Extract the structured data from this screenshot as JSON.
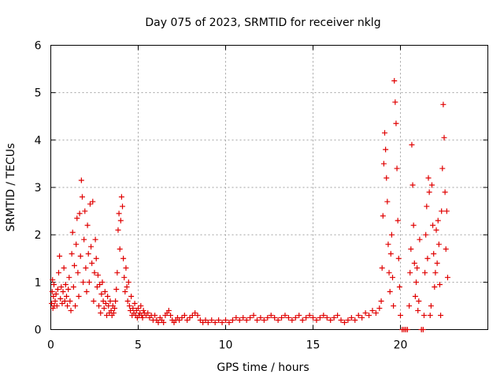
{
  "chart_data": {
    "type": "scatter",
    "title": "Day 075 of 2023, SRMTID for receiver nklg",
    "xlabel": "GPS time / hours",
    "ylabel": "SRMTID / TECUs",
    "xlim": [
      0,
      25
    ],
    "ylim": [
      0,
      6
    ],
    "xticks": [
      0,
      5,
      10,
      15,
      20
    ],
    "yticks": [
      0,
      1,
      2,
      3,
      4,
      5,
      6
    ],
    "grid": true,
    "marker": "+",
    "marker_color": "#e00000",
    "series": [
      {
        "name": "SRMTID",
        "points": [
          [
            0.05,
            0.55
          ],
          [
            0.08,
            0.8
          ],
          [
            0.1,
            1.05
          ],
          [
            0.12,
            0.45
          ],
          [
            0.15,
            0.7
          ],
          [
            0.18,
            0.95
          ],
          [
            0.2,
            0.5
          ],
          [
            0.25,
            0.6
          ],
          [
            0.3,
            0.75
          ],
          [
            0.35,
            0.5
          ],
          [
            0.4,
            0.85
          ],
          [
            0.45,
            1.2
          ],
          [
            0.5,
            1.55
          ],
          [
            0.55,
            0.65
          ],
          [
            0.6,
            0.9
          ],
          [
            0.65,
            0.55
          ],
          [
            0.7,
            0.8
          ],
          [
            0.75,
            1.3
          ],
          [
            0.8,
            0.6
          ],
          [
            0.85,
            0.95
          ],
          [
            0.9,
            0.7
          ],
          [
            0.95,
            0.5
          ],
          [
            1.0,
            0.85
          ],
          [
            1.05,
            1.1
          ],
          [
            1.1,
            0.6
          ],
          [
            1.15,
            0.4
          ],
          [
            1.2,
            1.6
          ],
          [
            1.25,
            2.05
          ],
          [
            1.3,
            0.9
          ],
          [
            1.35,
            1.35
          ],
          [
            1.4,
            0.5
          ],
          [
            1.45,
            1.8
          ],
          [
            1.5,
            2.35
          ],
          [
            1.55,
            1.2
          ],
          [
            1.6,
            0.7
          ],
          [
            1.65,
            2.45
          ],
          [
            1.7,
            1.55
          ],
          [
            1.75,
            3.15
          ],
          [
            1.8,
            2.8
          ],
          [
            1.85,
            1.0
          ],
          [
            1.9,
            1.9
          ],
          [
            1.95,
            2.5
          ],
          [
            2.0,
            1.3
          ],
          [
            2.05,
            0.8
          ],
          [
            2.1,
            2.2
          ],
          [
            2.15,
            1.6
          ],
          [
            2.2,
            1.0
          ],
          [
            2.25,
            2.65
          ],
          [
            2.3,
            1.75
          ],
          [
            2.35,
            1.4
          ],
          [
            2.4,
            2.7
          ],
          [
            2.45,
            0.6
          ],
          [
            2.5,
            1.2
          ],
          [
            2.55,
            1.9
          ],
          [
            2.6,
            1.5
          ],
          [
            2.65,
            0.9
          ],
          [
            2.7,
            1.15
          ],
          [
            2.75,
            0.5
          ],
          [
            2.8,
            0.95
          ],
          [
            2.85,
            0.35
          ],
          [
            2.9,
            0.75
          ],
          [
            2.95,
            1.0
          ],
          [
            3.0,
            0.6
          ],
          [
            3.05,
            0.45
          ],
          [
            3.1,
            0.8
          ],
          [
            3.15,
            0.55
          ],
          [
            3.2,
            0.3
          ],
          [
            3.25,
            0.7
          ],
          [
            3.3,
            0.5
          ],
          [
            3.35,
            0.35
          ],
          [
            3.4,
            0.6
          ],
          [
            3.45,
            0.4
          ],
          [
            3.5,
            0.3
          ],
          [
            3.55,
            0.5
          ],
          [
            3.6,
            0.35
          ],
          [
            3.65,
            0.45
          ],
          [
            3.7,
            0.6
          ],
          [
            3.75,
            0.85
          ],
          [
            3.8,
            1.2
          ],
          [
            3.85,
            2.1
          ],
          [
            3.9,
            2.45
          ],
          [
            3.95,
            1.7
          ],
          [
            4.0,
            2.3
          ],
          [
            4.05,
            2.8
          ],
          [
            4.1,
            2.6
          ],
          [
            4.15,
            1.5
          ],
          [
            4.2,
            1.1
          ],
          [
            4.25,
            0.8
          ],
          [
            4.3,
            1.3
          ],
          [
            4.35,
            0.9
          ],
          [
            4.4,
            0.6
          ],
          [
            4.45,
            1.0
          ],
          [
            4.5,
            0.5
          ],
          [
            4.55,
            0.4
          ],
          [
            4.6,
            0.7
          ],
          [
            4.65,
            0.3
          ],
          [
            4.7,
            0.45
          ],
          [
            4.75,
            0.35
          ],
          [
            4.8,
            0.55
          ],
          [
            4.85,
            0.3
          ],
          [
            4.9,
            0.4
          ],
          [
            4.95,
            0.25
          ],
          [
            5.0,
            0.45
          ],
          [
            5.05,
            0.3
          ],
          [
            5.1,
            0.35
          ],
          [
            5.15,
            0.5
          ],
          [
            5.2,
            0.3
          ],
          [
            5.25,
            0.25
          ],
          [
            5.3,
            0.4
          ],
          [
            5.35,
            0.35
          ],
          [
            5.45,
            0.3
          ],
          [
            5.55,
            0.35
          ],
          [
            5.65,
            0.25
          ],
          [
            5.75,
            0.3
          ],
          [
            5.85,
            0.2
          ],
          [
            5.95,
            0.3
          ],
          [
            6.05,
            0.2
          ],
          [
            6.15,
            0.15
          ],
          [
            6.25,
            0.25
          ],
          [
            6.35,
            0.2
          ],
          [
            6.45,
            0.15
          ],
          [
            6.55,
            0.3
          ],
          [
            6.65,
            0.35
          ],
          [
            6.75,
            0.4
          ],
          [
            6.85,
            0.3
          ],
          [
            6.95,
            0.2
          ],
          [
            7.05,
            0.15
          ],
          [
            7.15,
            0.2
          ],
          [
            7.25,
            0.25
          ],
          [
            7.35,
            0.2
          ],
          [
            7.5,
            0.25
          ],
          [
            7.65,
            0.3
          ],
          [
            7.8,
            0.2
          ],
          [
            7.95,
            0.25
          ],
          [
            8.1,
            0.3
          ],
          [
            8.25,
            0.35
          ],
          [
            8.4,
            0.3
          ],
          [
            8.55,
            0.2
          ],
          [
            8.7,
            0.15
          ],
          [
            8.85,
            0.2
          ],
          [
            9.0,
            0.15
          ],
          [
            9.2,
            0.2
          ],
          [
            9.4,
            0.15
          ],
          [
            9.6,
            0.2
          ],
          [
            9.8,
            0.15
          ],
          [
            10.0,
            0.2
          ],
          [
            10.2,
            0.15
          ],
          [
            10.4,
            0.2
          ],
          [
            10.6,
            0.25
          ],
          [
            10.8,
            0.2
          ],
          [
            11.0,
            0.25
          ],
          [
            11.2,
            0.2
          ],
          [
            11.4,
            0.25
          ],
          [
            11.6,
            0.3
          ],
          [
            11.8,
            0.2
          ],
          [
            12.0,
            0.25
          ],
          [
            12.2,
            0.2
          ],
          [
            12.4,
            0.25
          ],
          [
            12.6,
            0.3
          ],
          [
            12.8,
            0.25
          ],
          [
            13.0,
            0.2
          ],
          [
            13.2,
            0.25
          ],
          [
            13.4,
            0.3
          ],
          [
            13.6,
            0.25
          ],
          [
            13.8,
            0.2
          ],
          [
            14.0,
            0.25
          ],
          [
            14.2,
            0.3
          ],
          [
            14.4,
            0.2
          ],
          [
            14.6,
            0.25
          ],
          [
            14.8,
            0.3
          ],
          [
            15.0,
            0.25
          ],
          [
            15.2,
            0.2
          ],
          [
            15.4,
            0.25
          ],
          [
            15.6,
            0.3
          ],
          [
            15.8,
            0.25
          ],
          [
            16.0,
            0.2
          ],
          [
            16.2,
            0.25
          ],
          [
            16.4,
            0.3
          ],
          [
            16.6,
            0.2
          ],
          [
            16.8,
            0.15
          ],
          [
            17.0,
            0.2
          ],
          [
            17.2,
            0.25
          ],
          [
            17.4,
            0.2
          ],
          [
            17.6,
            0.3
          ],
          [
            17.8,
            0.25
          ],
          [
            18.0,
            0.35
          ],
          [
            18.2,
            0.3
          ],
          [
            18.4,
            0.4
          ],
          [
            18.6,
            0.35
          ],
          [
            18.8,
            0.45
          ],
          [
            18.9,
            0.6
          ],
          [
            18.95,
            1.3
          ],
          [
            19.0,
            2.4
          ],
          [
            19.05,
            3.5
          ],
          [
            19.1,
            4.15
          ],
          [
            19.15,
            3.8
          ],
          [
            19.2,
            3.2
          ],
          [
            19.25,
            2.7
          ],
          [
            19.3,
            1.8
          ],
          [
            19.35,
            1.2
          ],
          [
            19.4,
            0.8
          ],
          [
            19.45,
            1.6
          ],
          [
            19.5,
            2.0
          ],
          [
            19.55,
            1.1
          ],
          [
            19.6,
            0.5
          ],
          [
            19.65,
            5.25
          ],
          [
            19.7,
            4.8
          ],
          [
            19.75,
            4.35
          ],
          [
            19.8,
            3.4
          ],
          [
            19.85,
            2.3
          ],
          [
            19.9,
            1.5
          ],
          [
            19.95,
            0.9
          ],
          [
            20.0,
            0.3
          ],
          [
            20.1,
            0.0
          ],
          [
            20.2,
            0.0
          ],
          [
            20.3,
            0.0
          ],
          [
            20.4,
            0.0
          ],
          [
            20.5,
            0.5
          ],
          [
            20.55,
            1.2
          ],
          [
            20.6,
            1.7
          ],
          [
            20.65,
            3.9
          ],
          [
            20.7,
            3.05
          ],
          [
            20.75,
            2.2
          ],
          [
            20.8,
            1.4
          ],
          [
            20.85,
            0.7
          ],
          [
            20.9,
            1.0
          ],
          [
            20.95,
            1.3
          ],
          [
            21.0,
            0.4
          ],
          [
            21.05,
            0.6
          ],
          [
            21.1,
            1.9
          ],
          [
            21.2,
            0.0
          ],
          [
            21.3,
            0.0
          ],
          [
            21.35,
            0.3
          ],
          [
            21.4,
            1.2
          ],
          [
            21.45,
            2.0
          ],
          [
            21.5,
            2.6
          ],
          [
            21.55,
            1.5
          ],
          [
            21.6,
            3.2
          ],
          [
            21.65,
            2.9
          ],
          [
            21.7,
            0.3
          ],
          [
            21.75,
            0.5
          ],
          [
            21.8,
            3.05
          ],
          [
            21.85,
            2.2
          ],
          [
            21.9,
            1.6
          ],
          [
            21.95,
            0.9
          ],
          [
            22.0,
            1.2
          ],
          [
            22.05,
            2.1
          ],
          [
            22.1,
            1.4
          ],
          [
            22.15,
            2.3
          ],
          [
            22.2,
            1.8
          ],
          [
            22.25,
            0.95
          ],
          [
            22.3,
            0.3
          ],
          [
            22.35,
            2.5
          ],
          [
            22.4,
            3.4
          ],
          [
            22.45,
            4.75
          ],
          [
            22.5,
            4.05
          ],
          [
            22.55,
            2.9
          ],
          [
            22.6,
            1.7
          ],
          [
            22.65,
            2.5
          ],
          [
            22.7,
            1.1
          ]
        ]
      }
    ]
  }
}
